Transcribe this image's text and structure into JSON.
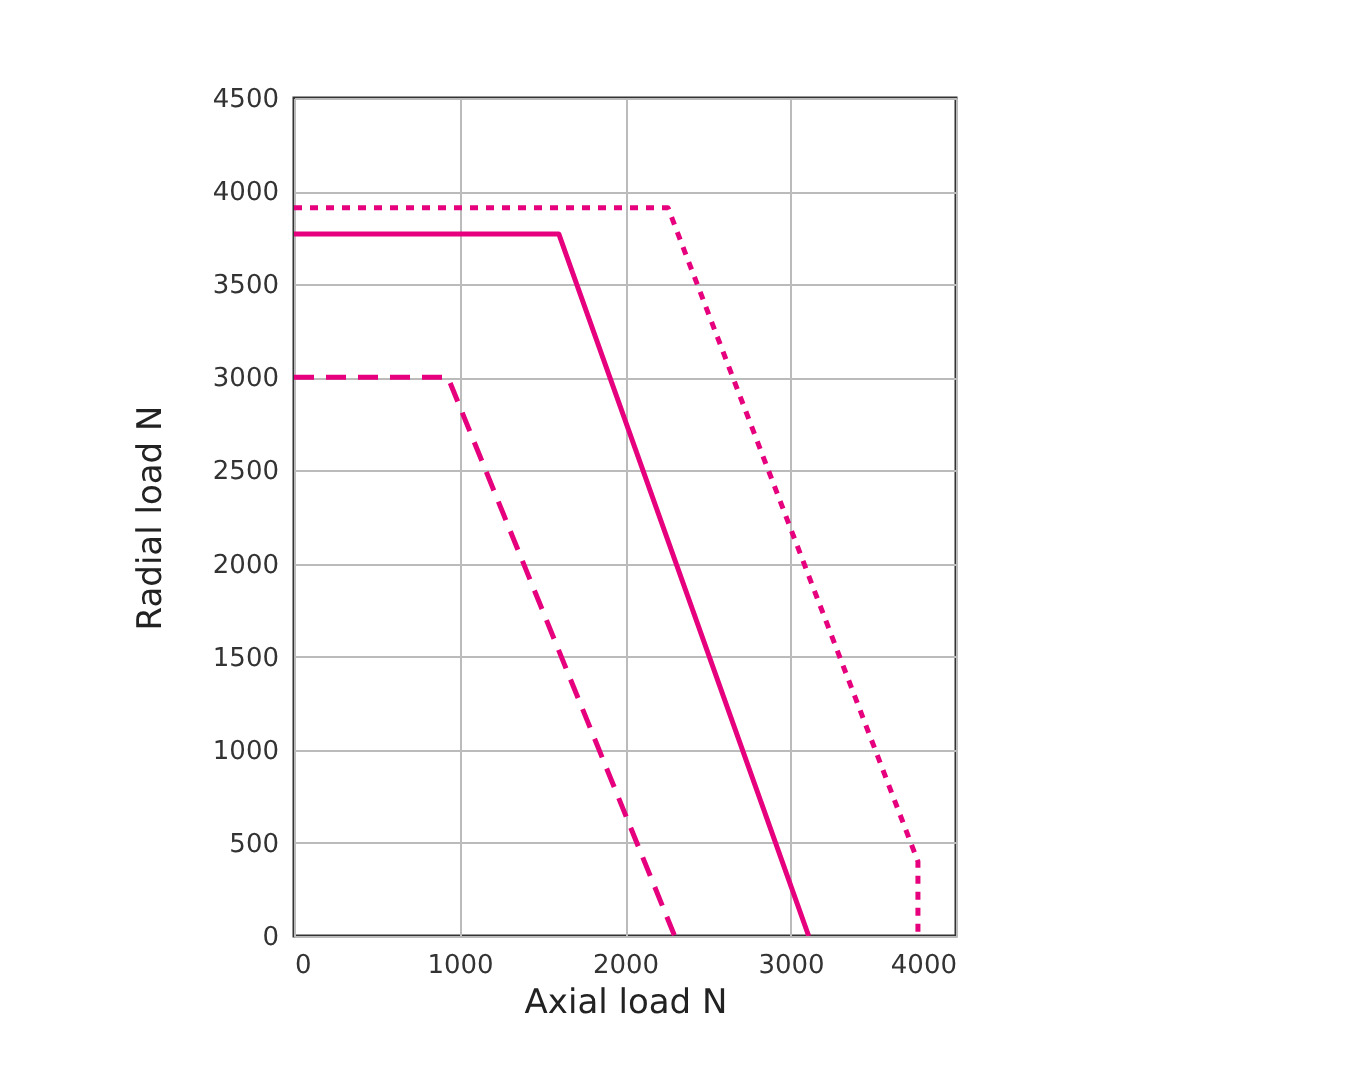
{
  "chart_data": {
    "type": "line",
    "xlabel": "Axial load N",
    "ylabel": "Radial load N",
    "xlim": [
      0,
      4000
    ],
    "xticks": [
      0,
      1000,
      2000,
      3000,
      4000
    ],
    "ylim": [
      0,
      4500
    ],
    "yticks": [
      0,
      500,
      1000,
      1500,
      2000,
      2500,
      3000,
      3500,
      4000,
      4500
    ],
    "grid": true,
    "series": [
      {
        "color": "#e6007e",
        "line_style": "dashed",
        "x": [
          0,
          930,
          2300
        ],
        "values": [
          3000,
          3000,
          0
        ]
      },
      {
        "color": "#e6007e",
        "line_style": "solid",
        "x": [
          0,
          1600,
          3110
        ],
        "values": [
          3770,
          3770,
          0
        ]
      },
      {
        "color": "#e6007e",
        "line_style": "dotted",
        "x": [
          0,
          2260,
          3770,
          3770
        ],
        "values": [
          3910,
          3910,
          400,
          0
        ]
      }
    ]
  }
}
